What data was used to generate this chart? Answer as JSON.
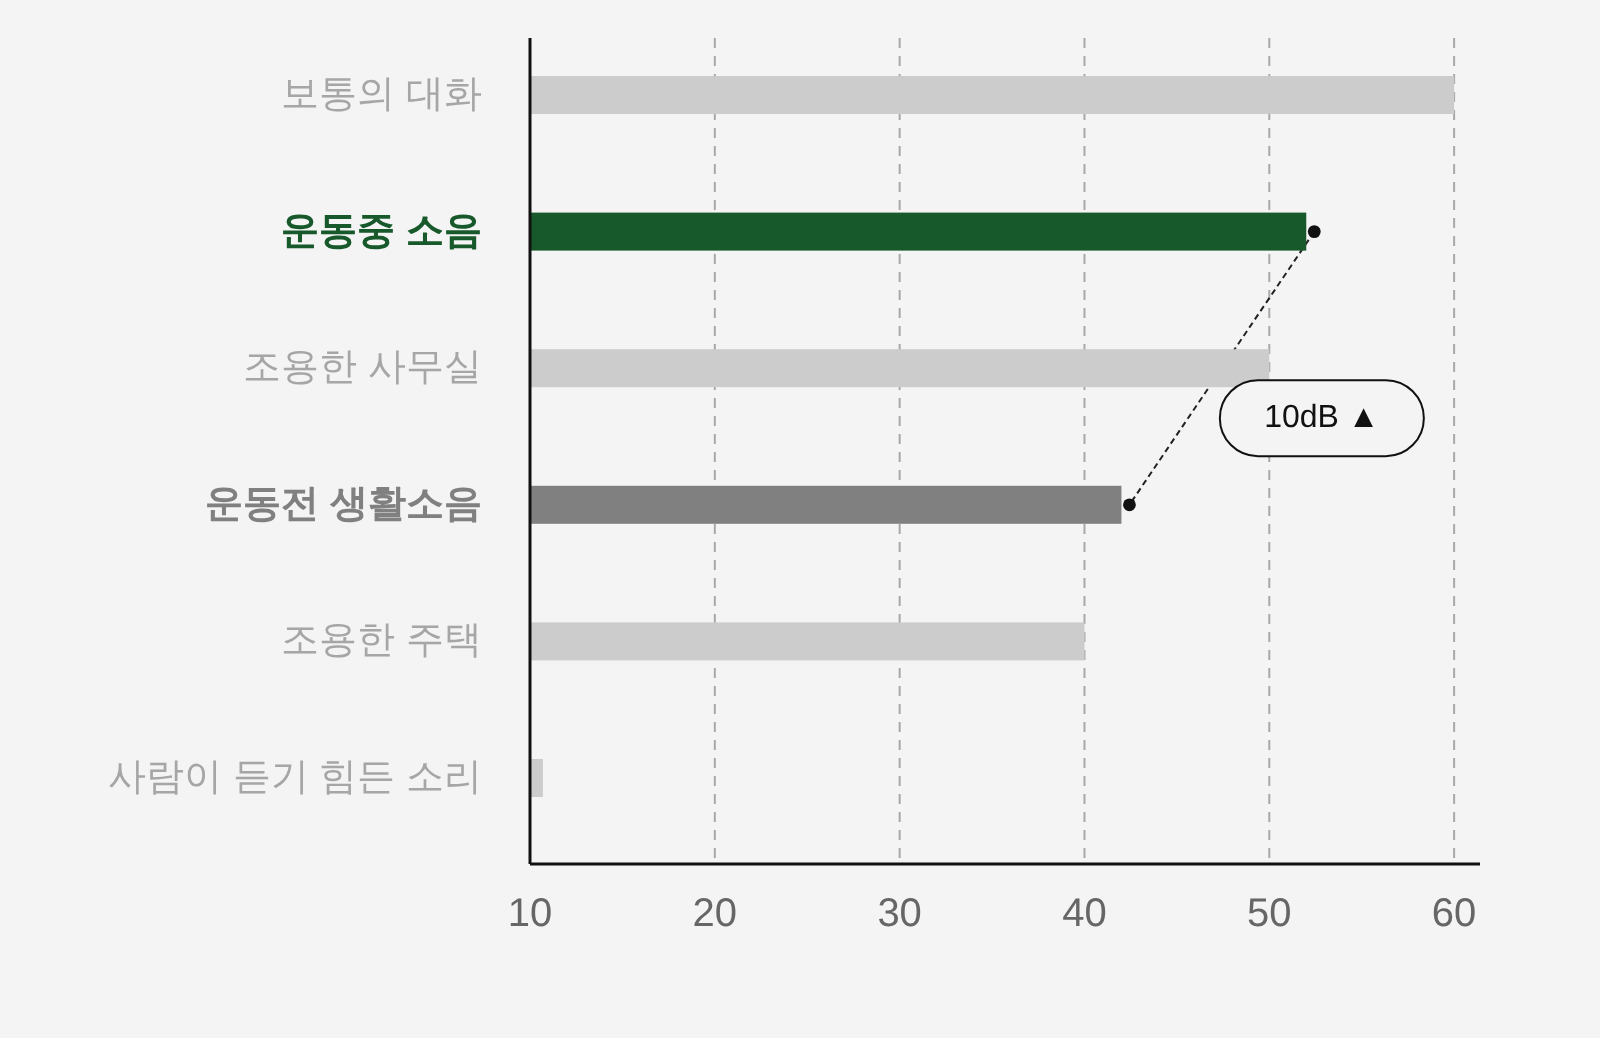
{
  "chart_data": {
    "type": "bar",
    "orientation": "horizontal",
    "categories": [
      "보통의 대화",
      "운동중 소음",
      "조용한 사무실",
      "운동전 생활소음",
      "조용한 주택",
      "사람이 듣기 힘든 소리"
    ],
    "values": [
      60,
      52,
      50,
      42,
      40,
      10.7
    ],
    "colors": [
      "#cccccc",
      "#17592b",
      "#cccccc",
      "#808080",
      "#cccccc",
      "#cccccc"
    ],
    "xlim": [
      10,
      61.4
    ],
    "xticks": [
      10,
      20,
      30,
      40,
      50,
      60
    ],
    "grid": "x",
    "annotations": [
      "10dB ▲"
    ]
  }
}
